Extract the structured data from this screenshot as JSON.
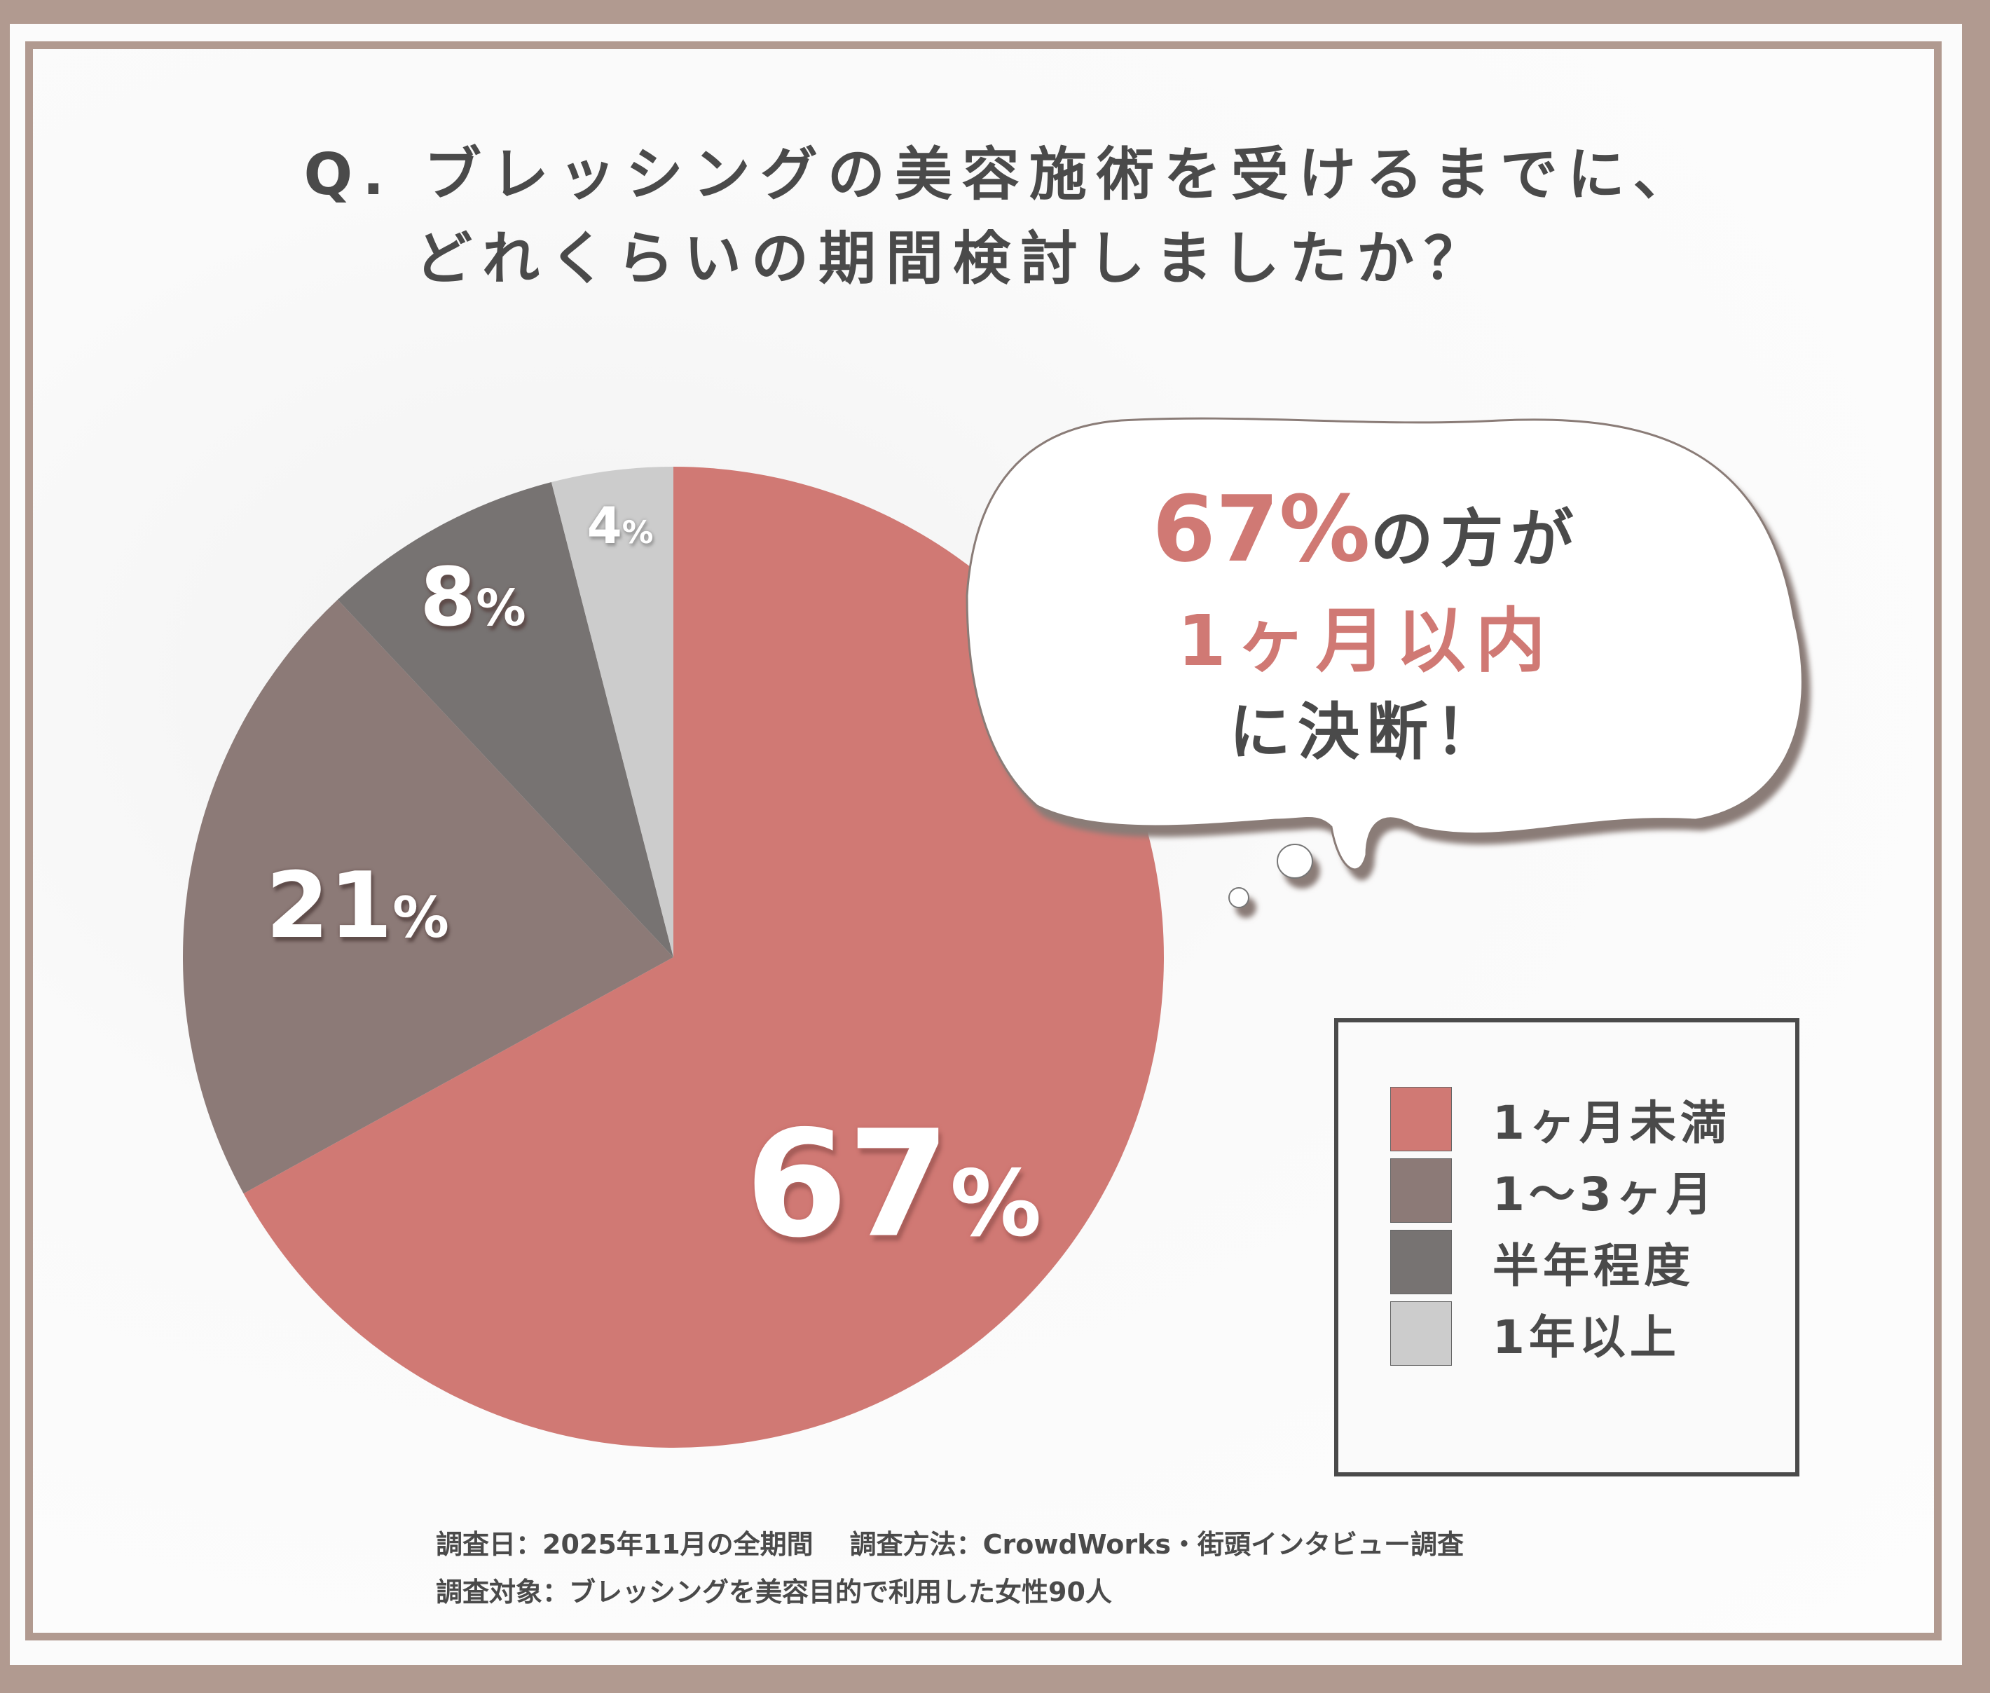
{
  "title": {
    "line1": "Q. ブレッシングの美容施術を受けるまでに、",
    "line2": "どれくらいの期間検討しましたか？"
  },
  "callout": {
    "percent": "67%",
    "suffix": "の方が",
    "highlight": "1ヶ月以内",
    "closing": "に決断！"
  },
  "legend": {
    "items": [
      {
        "label": "1ヶ月未満",
        "color": "#d07974"
      },
      {
        "label": "1〜3ヶ月",
        "color": "#8c7a77"
      },
      {
        "label": "半年程度",
        "color": "#777372"
      },
      {
        "label": "1年以上",
        "color": "#cccccc"
      }
    ]
  },
  "slice_labels": {
    "s0": "67",
    "s1": "21",
    "s2": "8",
    "s3": "4",
    "pct": "%"
  },
  "footer": {
    "survey_date": "調査日：2025年11月の全期間",
    "survey_method": "調査方法：CrowdWorks・街頭インタビュー調査",
    "survey_target": "調査対象：ブレッシングを美容目的で利用した女性90人"
  },
  "colors": {
    "frame": "#b19a90",
    "accent": "#d07974",
    "text": "#4a4a4a"
  },
  "chart_data": {
    "type": "pie",
    "title": "Q. ブレッシングの美容施術を受けるまでに、どれくらいの期間検討しましたか？",
    "categories": [
      "1ヶ月未満",
      "1〜3ヶ月",
      "半年程度",
      "1年以上"
    ],
    "values": [
      67,
      21,
      8,
      4
    ],
    "unit": "%",
    "colors": [
      "#d07974",
      "#8c7a77",
      "#777372",
      "#cccccc"
    ],
    "start_angle": "12 o'clock",
    "direction": "clockwise",
    "legend_position": "right",
    "annotation": "67%の方が1ヶ月以内に決断！",
    "sample_size": 90
  }
}
